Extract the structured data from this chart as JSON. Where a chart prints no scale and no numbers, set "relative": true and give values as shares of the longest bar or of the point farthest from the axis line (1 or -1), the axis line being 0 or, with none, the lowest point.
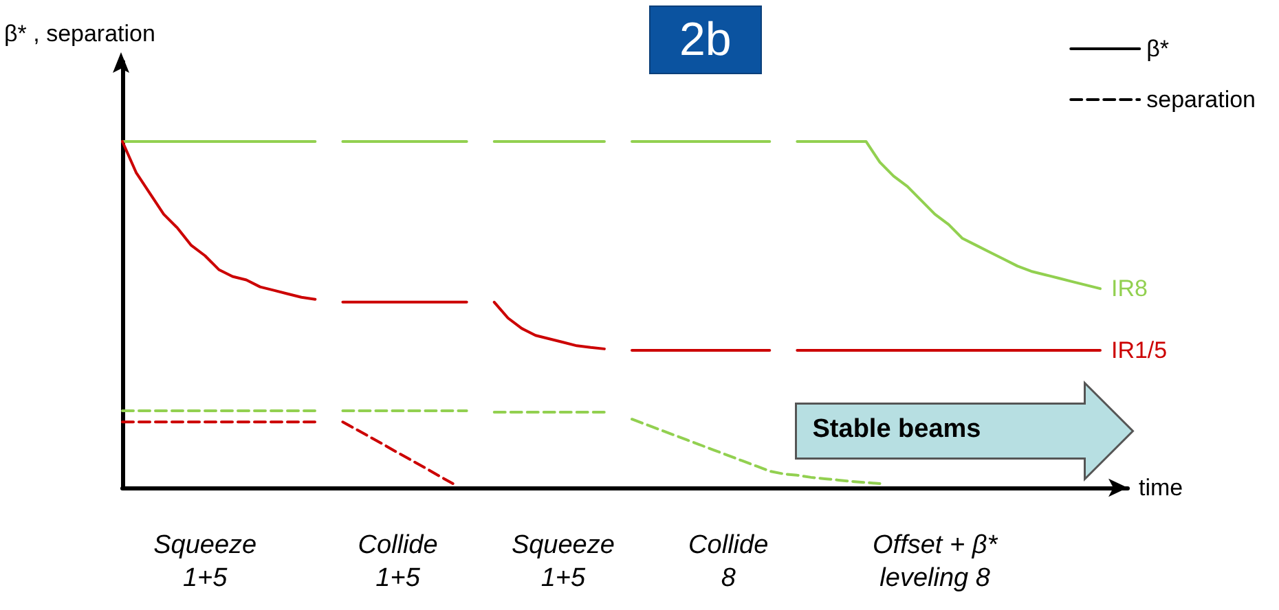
{
  "chart_data": {
    "type": "line",
    "title": "2b",
    "xlabel": "time",
    "ylabel": "β* , separation",
    "relative": true,
    "legend": "top right",
    "marker": "none",
    "categories": [
      null,
      null,
      null,
      null,
      null,
      null,
      "Squeeze\n1+5",
      null,
      null,
      null,
      null,
      null,
      null,
      null,
      null,
      null,
      null,
      null,
      null,
      null,
      "Collide\n1+5",
      null,
      null,
      null,
      null,
      null,
      null,
      null,
      null,
      null,
      null,
      null,
      "Squeeze\n1+5",
      null,
      null,
      null,
      null,
      null,
      null,
      null,
      null,
      null,
      null,
      null,
      "Collide\n8",
      null,
      null,
      null,
      null,
      null,
      null,
      null,
      null,
      null,
      null,
      null,
      null,
      null,
      null,
      "Offset + β*\nleveling 8",
      null,
      null,
      null,
      null,
      null,
      null,
      null,
      null,
      null,
      null,
      null,
      null,
      null,
      null
    ],
    "annotations": [
      "Stable beams"
    ],
    "series": [
      {
        "name": "IR8",
        "color": "#92d050",
        "line_style": "solid",
        "values": [
          1,
          1,
          1,
          1,
          1,
          1,
          1,
          1,
          1,
          1,
          1,
          1,
          1,
          1,
          1,
          null,
          1,
          1,
          1,
          1,
          1,
          1,
          1,
          1,
          1,
          1,
          null,
          1,
          1,
          1,
          1,
          1,
          1,
          1,
          1,
          1,
          null,
          1,
          1,
          1,
          1,
          1,
          1,
          1,
          1,
          1,
          1,
          1,
          null,
          1,
          1,
          1,
          1,
          1,
          1,
          0.94,
          0.9,
          0.87,
          0.83,
          0.79,
          0.76,
          0.72,
          0.7,
          0.68,
          0.66,
          0.64,
          0.625,
          0.615,
          0.605,
          0.595,
          0.585,
          0.575,
          null,
          null
        ]
      },
      {
        "name": "IR1/5",
        "color": "#cc0000",
        "line_style": "solid",
        "values": [
          1,
          0.91,
          0.85,
          0.79,
          0.75,
          0.7,
          0.67,
          0.63,
          0.61,
          0.6,
          0.58,
          0.57,
          0.56,
          0.55,
          0.544,
          null,
          0.536,
          0.536,
          0.536,
          0.536,
          0.536,
          0.536,
          0.536,
          0.536,
          0.536,
          0.536,
          null,
          0.536,
          0.49,
          0.46,
          0.44,
          0.43,
          0.42,
          0.41,
          0.405,
          0.401,
          null,
          0.397,
          0.397,
          0.397,
          0.397,
          0.397,
          0.397,
          0.397,
          0.397,
          0.397,
          0.397,
          0.397,
          null,
          0.397,
          0.397,
          0.397,
          0.397,
          0.397,
          0.397,
          0.397,
          0.397,
          0.397,
          0.397,
          0.397,
          0.397,
          0.397,
          0.397,
          0.397,
          0.397,
          0.397,
          0.397,
          0.397,
          0.397,
          0.397,
          0.397,
          0.397,
          null,
          null
        ]
      },
      {
        "color": "#92d050",
        "line_style": "dashed",
        "values": [
          0.222,
          0.222,
          0.222,
          0.222,
          0.222,
          0.222,
          0.222,
          0.222,
          0.222,
          0.222,
          0.222,
          0.222,
          0.222,
          0.222,
          0.222,
          null,
          0.222,
          0.222,
          0.222,
          0.222,
          0.222,
          0.222,
          0.222,
          0.222,
          0.222,
          0.222,
          null,
          0.218,
          0.218,
          0.218,
          0.218,
          0.218,
          0.218,
          0.218,
          0.218,
          0.218,
          null,
          0.198,
          0.183,
          0.168,
          0.153,
          0.138,
          0.123,
          0.108,
          0.093,
          0.078,
          0.063,
          0.048,
          0.04,
          0.036,
          0.03,
          0.026,
          0.022,
          0.018,
          0.015,
          0.012,
          null,
          null,
          null,
          null,
          null,
          null,
          null,
          null,
          null,
          null,
          null,
          null,
          null,
          null,
          null,
          null,
          null,
          null
        ]
      },
      {
        "color": "#cc0000",
        "line_style": "dashed",
        "values": [
          0.19,
          0.19,
          0.19,
          0.19,
          0.19,
          0.19,
          0.19,
          0.19,
          0.19,
          0.19,
          0.19,
          0.19,
          0.19,
          0.19,
          0.19,
          null,
          0.19,
          0.168,
          0.146,
          0.124,
          0.101,
          0.079,
          0.057,
          0.034,
          0.012,
          null,
          null,
          null,
          null,
          null,
          null,
          null,
          null,
          null,
          null,
          null,
          null,
          null,
          null,
          null,
          null,
          null,
          null,
          null,
          null,
          null,
          null,
          null,
          null,
          null,
          null,
          null,
          null,
          null,
          null,
          null,
          null,
          null,
          null,
          null,
          null,
          null,
          null,
          null,
          null,
          null,
          null,
          null,
          null,
          null,
          null,
          null,
          null,
          null
        ]
      },
      {
        "name": "β*",
        "color": "#000000",
        "line_style": "solid",
        "values": [
          null,
          null,
          null,
          null,
          null,
          null,
          null,
          null,
          null,
          null,
          null,
          null,
          null,
          null,
          null,
          null,
          null,
          null,
          null,
          null,
          null,
          null,
          null,
          null,
          null,
          null,
          null,
          null,
          null,
          null,
          null,
          null,
          null,
          null,
          null,
          null,
          null,
          null,
          null,
          null,
          null,
          null,
          null,
          null,
          null,
          null,
          null,
          null,
          null,
          null,
          null,
          null,
          null,
          null,
          null,
          null,
          null,
          null,
          null,
          null,
          null,
          null,
          null,
          null,
          null,
          null,
          null,
          null,
          null,
          null,
          null,
          null,
          null,
          null
        ]
      },
      {
        "name": "separation",
        "color": "#000000",
        "line_style": "dashed",
        "values": [
          null,
          null,
          null,
          null,
          null,
          null,
          null,
          null,
          null,
          null,
          null,
          null,
          null,
          null,
          null,
          null,
          null,
          null,
          null,
          null,
          null,
          null,
          null,
          null,
          null,
          null,
          null,
          null,
          null,
          null,
          null,
          null,
          null,
          null,
          null,
          null,
          null,
          null,
          null,
          null,
          null,
          null,
          null,
          null,
          null,
          null,
          null,
          null,
          null,
          null,
          null,
          null,
          null,
          null,
          null,
          null,
          null,
          null,
          null,
          null,
          null,
          null,
          null,
          null,
          null,
          null,
          null,
          null,
          null,
          null,
          null,
          null,
          null,
          null
        ]
      }
    ]
  }
}
